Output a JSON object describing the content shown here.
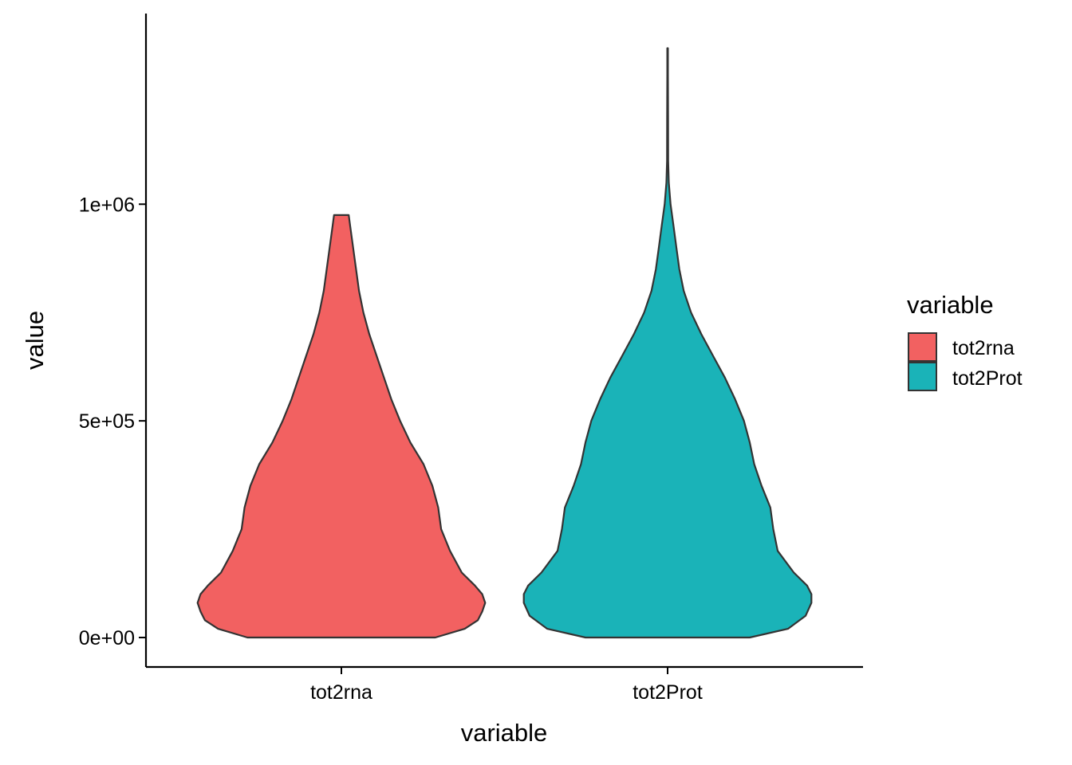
{
  "chart_data": {
    "type": "violin",
    "xlabel": "variable",
    "ylabel": "value",
    "categories": [
      "tot2rna",
      "tot2Prot"
    ],
    "ylim": [
      -68000,
      1440000
    ],
    "yticks": [
      {
        "value": 0,
        "label": "0e+00"
      },
      {
        "value": 500000,
        "label": "5e+05"
      },
      {
        "value": 1000000,
        "label": "1e+06"
      }
    ],
    "grid": false,
    "legend": {
      "title": "variable",
      "position": "right",
      "entries": [
        {
          "label": "tot2rna",
          "color": "#F26161"
        },
        {
          "label": "tot2Prot",
          "color": "#1AB3B8"
        }
      ]
    },
    "series": [
      {
        "name": "tot2rna",
        "color": "#F26161",
        "range": [
          0,
          975000
        ],
        "profile": [
          [
            0,
            0.64
          ],
          [
            20000,
            0.84
          ],
          [
            40000,
            0.93
          ],
          [
            60000,
            0.96
          ],
          [
            80000,
            0.98
          ],
          [
            100000,
            0.96
          ],
          [
            120000,
            0.91
          ],
          [
            150000,
            0.82
          ],
          [
            200000,
            0.74
          ],
          [
            250000,
            0.68
          ],
          [
            300000,
            0.66
          ],
          [
            350000,
            0.62
          ],
          [
            400000,
            0.56
          ],
          [
            450000,
            0.47
          ],
          [
            500000,
            0.4
          ],
          [
            550000,
            0.34
          ],
          [
            600000,
            0.29
          ],
          [
            650000,
            0.24
          ],
          [
            700000,
            0.19
          ],
          [
            750000,
            0.15
          ],
          [
            800000,
            0.12
          ],
          [
            850000,
            0.1
          ],
          [
            900000,
            0.08
          ],
          [
            950000,
            0.06
          ],
          [
            975000,
            0.05
          ]
        ]
      },
      {
        "name": "tot2Prot",
        "color": "#1AB3B8",
        "range": [
          0,
          1360000
        ],
        "profile": [
          [
            0,
            0.56
          ],
          [
            20000,
            0.82
          ],
          [
            50000,
            0.94
          ],
          [
            80000,
            0.98
          ],
          [
            100000,
            0.98
          ],
          [
            120000,
            0.95
          ],
          [
            150000,
            0.86
          ],
          [
            200000,
            0.75
          ],
          [
            250000,
            0.72
          ],
          [
            300000,
            0.7
          ],
          [
            350000,
            0.64
          ],
          [
            400000,
            0.59
          ],
          [
            450000,
            0.56
          ],
          [
            500000,
            0.52
          ],
          [
            550000,
            0.46
          ],
          [
            600000,
            0.39
          ],
          [
            650000,
            0.31
          ],
          [
            700000,
            0.23
          ],
          [
            750000,
            0.16
          ],
          [
            800000,
            0.11
          ],
          [
            850000,
            0.08
          ],
          [
            900000,
            0.06
          ],
          [
            950000,
            0.04
          ],
          [
            1000000,
            0.02
          ],
          [
            1050000,
            0.008
          ],
          [
            1100000,
            0.004
          ],
          [
            1200000,
            0.003
          ],
          [
            1300000,
            0.002
          ],
          [
            1360000,
            0.002
          ]
        ]
      }
    ]
  }
}
